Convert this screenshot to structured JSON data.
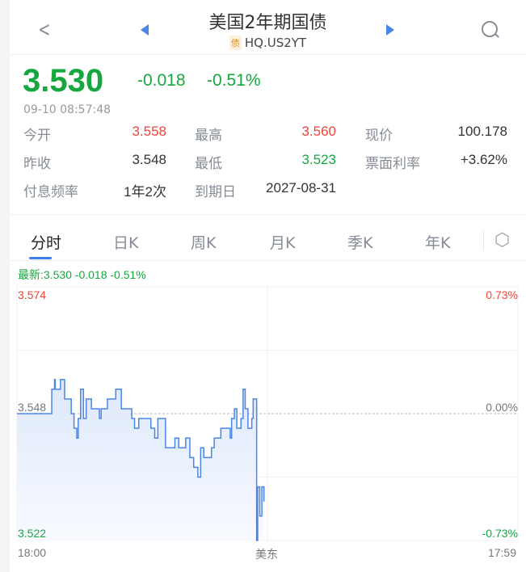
{
  "header": {
    "back_icon": "chevron-left-icon",
    "prev_icon": "triangle-left-icon",
    "next_icon": "triangle-right-icon",
    "search_icon": "search-icon",
    "title": "美国2年期国债",
    "badge": "债",
    "code": "HQ.US2YT"
  },
  "quote": {
    "price": "3.530",
    "change": "-0.018",
    "change_pct": "-0.51%",
    "time": "09-10 08:57:48",
    "stats": [
      {
        "label": "今开",
        "value": "3.558",
        "color": "#f04438"
      },
      {
        "label": "最高",
        "value": "3.560",
        "color": "#f04438"
      },
      {
        "label": "现价",
        "value": "100.178",
        "color": "#333333"
      },
      {
        "label": "昨收",
        "value": "3.548",
        "color": "#333333"
      },
      {
        "label": "最低",
        "value": "3.523",
        "color": "#16a83e"
      },
      {
        "label": "票面利率",
        "value": "+3.62%",
        "color": "#333333"
      },
      {
        "label": "付息频率",
        "value": "1年2次",
        "color": "#333333"
      },
      {
        "label": "到期日",
        "value": "2027-08-31",
        "color": "#333333"
      }
    ]
  },
  "tabs": [
    {
      "label": "分时",
      "active": true
    },
    {
      "label": "日K"
    },
    {
      "label": "周K"
    },
    {
      "label": "月K"
    },
    {
      "label": "季K"
    },
    {
      "label": "年K"
    }
  ],
  "settings_icon": "hexagon-settings-icon",
  "colors": {
    "up": "#f04438",
    "down": "#16a83e",
    "line": "#4a86e8"
  },
  "chart_data": {
    "type": "line",
    "latest_label": "最新:3.530  -0.018  -0.51%",
    "y_left_ticks": [
      "3.574",
      "3.548",
      "3.522"
    ],
    "y_right_ticks": [
      "0.73%",
      "0.00%",
      "-0.73%"
    ],
    "x_ticks": [
      "18:00",
      "美东",
      "17:59"
    ],
    "ylim": [
      3.522,
      3.574
    ],
    "prev_close": 3.548,
    "x_range": [
      "18:00",
      "17:59"
    ],
    "step": true,
    "points": [
      [
        "18:00",
        3.548
      ],
      [
        "19:40",
        3.553
      ],
      [
        "19:48",
        3.555
      ],
      [
        "19:50",
        3.553
      ],
      [
        "20:05",
        3.555
      ],
      [
        "20:17",
        3.551
      ],
      [
        "20:36",
        3.548
      ],
      [
        "20:44",
        3.545
      ],
      [
        "20:52",
        3.543
      ],
      [
        "20:56",
        3.547
      ],
      [
        "21:03",
        3.553
      ],
      [
        "21:11",
        3.547
      ],
      [
        "21:19",
        3.551
      ],
      [
        "21:34",
        3.549
      ],
      [
        "21:57",
        3.547
      ],
      [
        "22:02",
        3.549
      ],
      [
        "22:20",
        3.551
      ],
      [
        "22:44",
        3.553
      ],
      [
        "23:00",
        3.549
      ],
      [
        "23:30",
        3.547
      ],
      [
        "23:38",
        3.545
      ],
      [
        "23:50",
        3.547
      ],
      [
        "00:25",
        3.545
      ],
      [
        "00:36",
        3.543
      ],
      [
        "00:45",
        3.547
      ],
      [
        "01:00",
        3.547
      ],
      [
        "01:07",
        3.541
      ],
      [
        "01:34",
        3.543
      ],
      [
        "01:45",
        3.541
      ],
      [
        "02:05",
        3.543
      ],
      [
        "02:17",
        3.539
      ],
      [
        "02:28",
        3.537
      ],
      [
        "02:40",
        3.535
      ],
      [
        "02:48",
        3.541
      ],
      [
        "02:57",
        3.539
      ],
      [
        "03:19",
        3.541
      ],
      [
        "03:27",
        3.543
      ],
      [
        "03:46",
        3.545
      ],
      [
        "04:13",
        3.543
      ],
      [
        "04:17",
        3.547
      ],
      [
        "04:25",
        3.549
      ],
      [
        "04:32",
        3.545
      ],
      [
        "04:44",
        3.547
      ],
      [
        "04:50",
        3.553
      ],
      [
        "04:56",
        3.549
      ],
      [
        "05:04",
        3.545
      ],
      [
        "05:15",
        3.547
      ],
      [
        "05:19",
        3.551
      ],
      [
        "05:25",
        3.551
      ],
      [
        "05:29",
        3.522
      ],
      [
        "05:32",
        3.533
      ],
      [
        "05:38",
        3.527
      ],
      [
        "05:44",
        3.533
      ],
      [
        "05:50",
        3.53
      ]
    ]
  }
}
